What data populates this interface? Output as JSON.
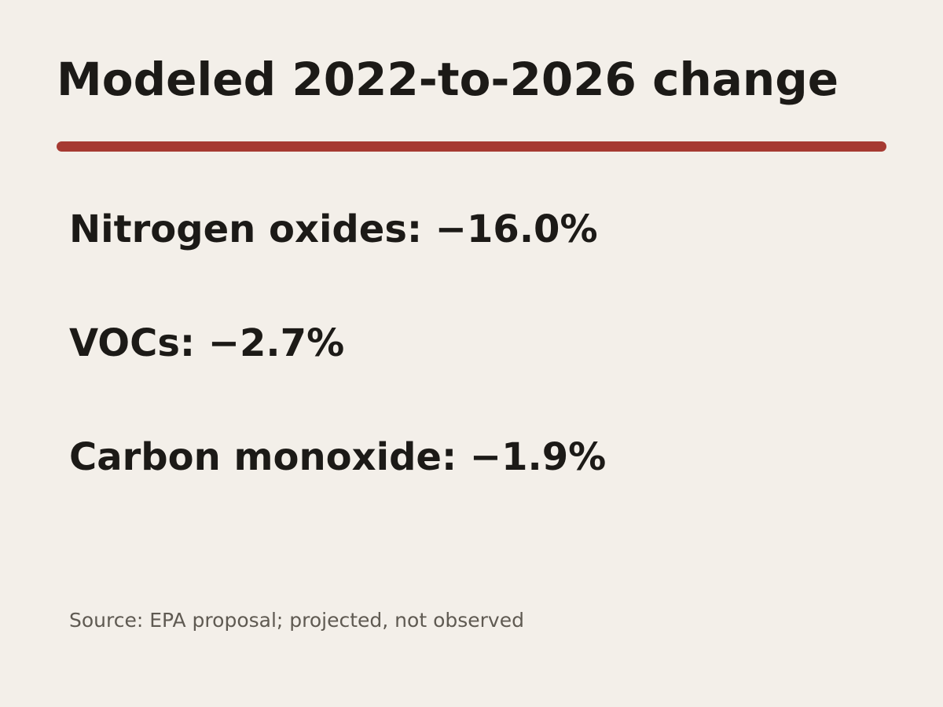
{
  "title": "Modeled 2022-to-2026 change",
  "items": [
    "Nitrogen oxides: −16.0%",
    "VOCs: −2.7%",
    "Carbon monoxide: −1.9%"
  ],
  "source": "Source: EPA proposal; projected, not observed"
}
